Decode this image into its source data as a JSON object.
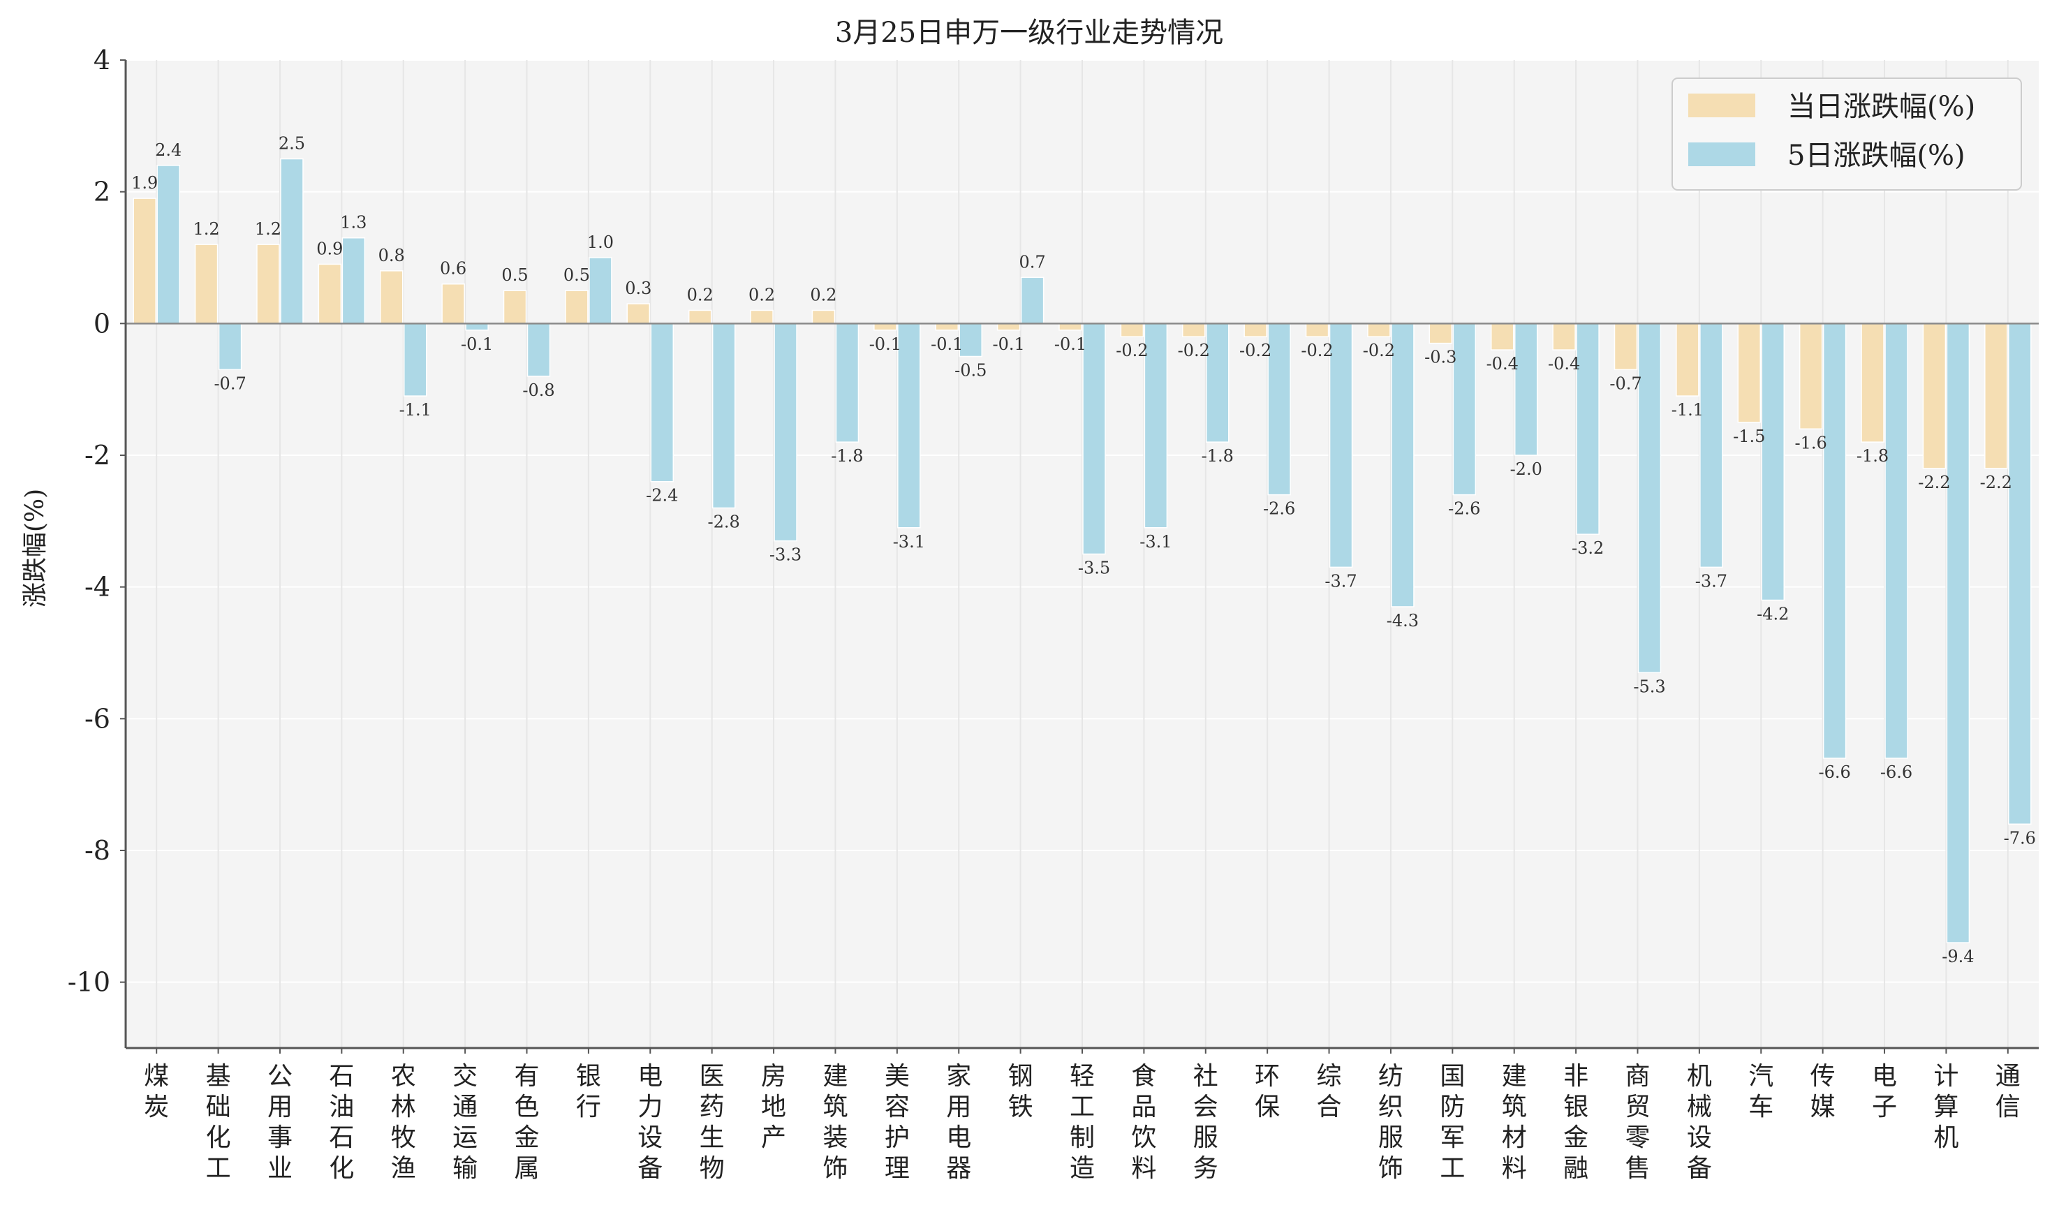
{
  "chart_data": {
    "type": "bar",
    "title": "3月25日申万一级行业走势情况",
    "xlabel": "",
    "ylabel": "涨跌幅(%)",
    "ylim": [
      -11,
      4
    ],
    "yticks": [
      4,
      2,
      0,
      -2,
      -4,
      -6,
      -8,
      -10
    ],
    "legend_position": "top-right",
    "grid": true,
    "categories": [
      "煤炭",
      "基础化工",
      "公用事业",
      "石油石化",
      "农林牧渔",
      "交通运输",
      "有色金属",
      "银行",
      "电力设备",
      "医药生物",
      "房地产",
      "建筑装饰",
      "美容护理",
      "家用电器",
      "钢铁",
      "轻工制造",
      "食品饮料",
      "社会服务",
      "环保",
      "综合",
      "纺织服饰",
      "国防军工",
      "建筑材料",
      "非银金融",
      "商贸零售",
      "机械设备",
      "汽车",
      "传媒",
      "电子",
      "计算机",
      "通信"
    ],
    "series": [
      {
        "name": "当日涨跌幅(%)",
        "color": "#f5deb3",
        "values": [
          1.9,
          1.2,
          1.2,
          0.9,
          0.8,
          0.6,
          0.5,
          0.5,
          0.3,
          0.2,
          0.2,
          0.2,
          -0.1,
          -0.1,
          -0.1,
          -0.1,
          -0.2,
          -0.2,
          -0.2,
          -0.2,
          -0.2,
          -0.3,
          -0.4,
          -0.4,
          -0.7,
          -1.1,
          -1.5,
          -1.6,
          -1.8,
          -2.2,
          -2.2
        ]
      },
      {
        "name": "5日涨跌幅(%)",
        "color": "#add8e6",
        "values": [
          2.4,
          -0.7,
          2.5,
          1.3,
          -1.1,
          -0.1,
          -0.8,
          1.0,
          -2.4,
          -2.8,
          -3.3,
          -1.8,
          -3.1,
          -0.5,
          0.7,
          -3.5,
          -3.1,
          -1.8,
          -2.6,
          -3.7,
          -4.3,
          -2.6,
          -2.0,
          -3.2,
          -5.3,
          -3.7,
          -4.2,
          -6.6,
          -6.6,
          -9.4,
          -7.6
        ]
      }
    ]
  }
}
